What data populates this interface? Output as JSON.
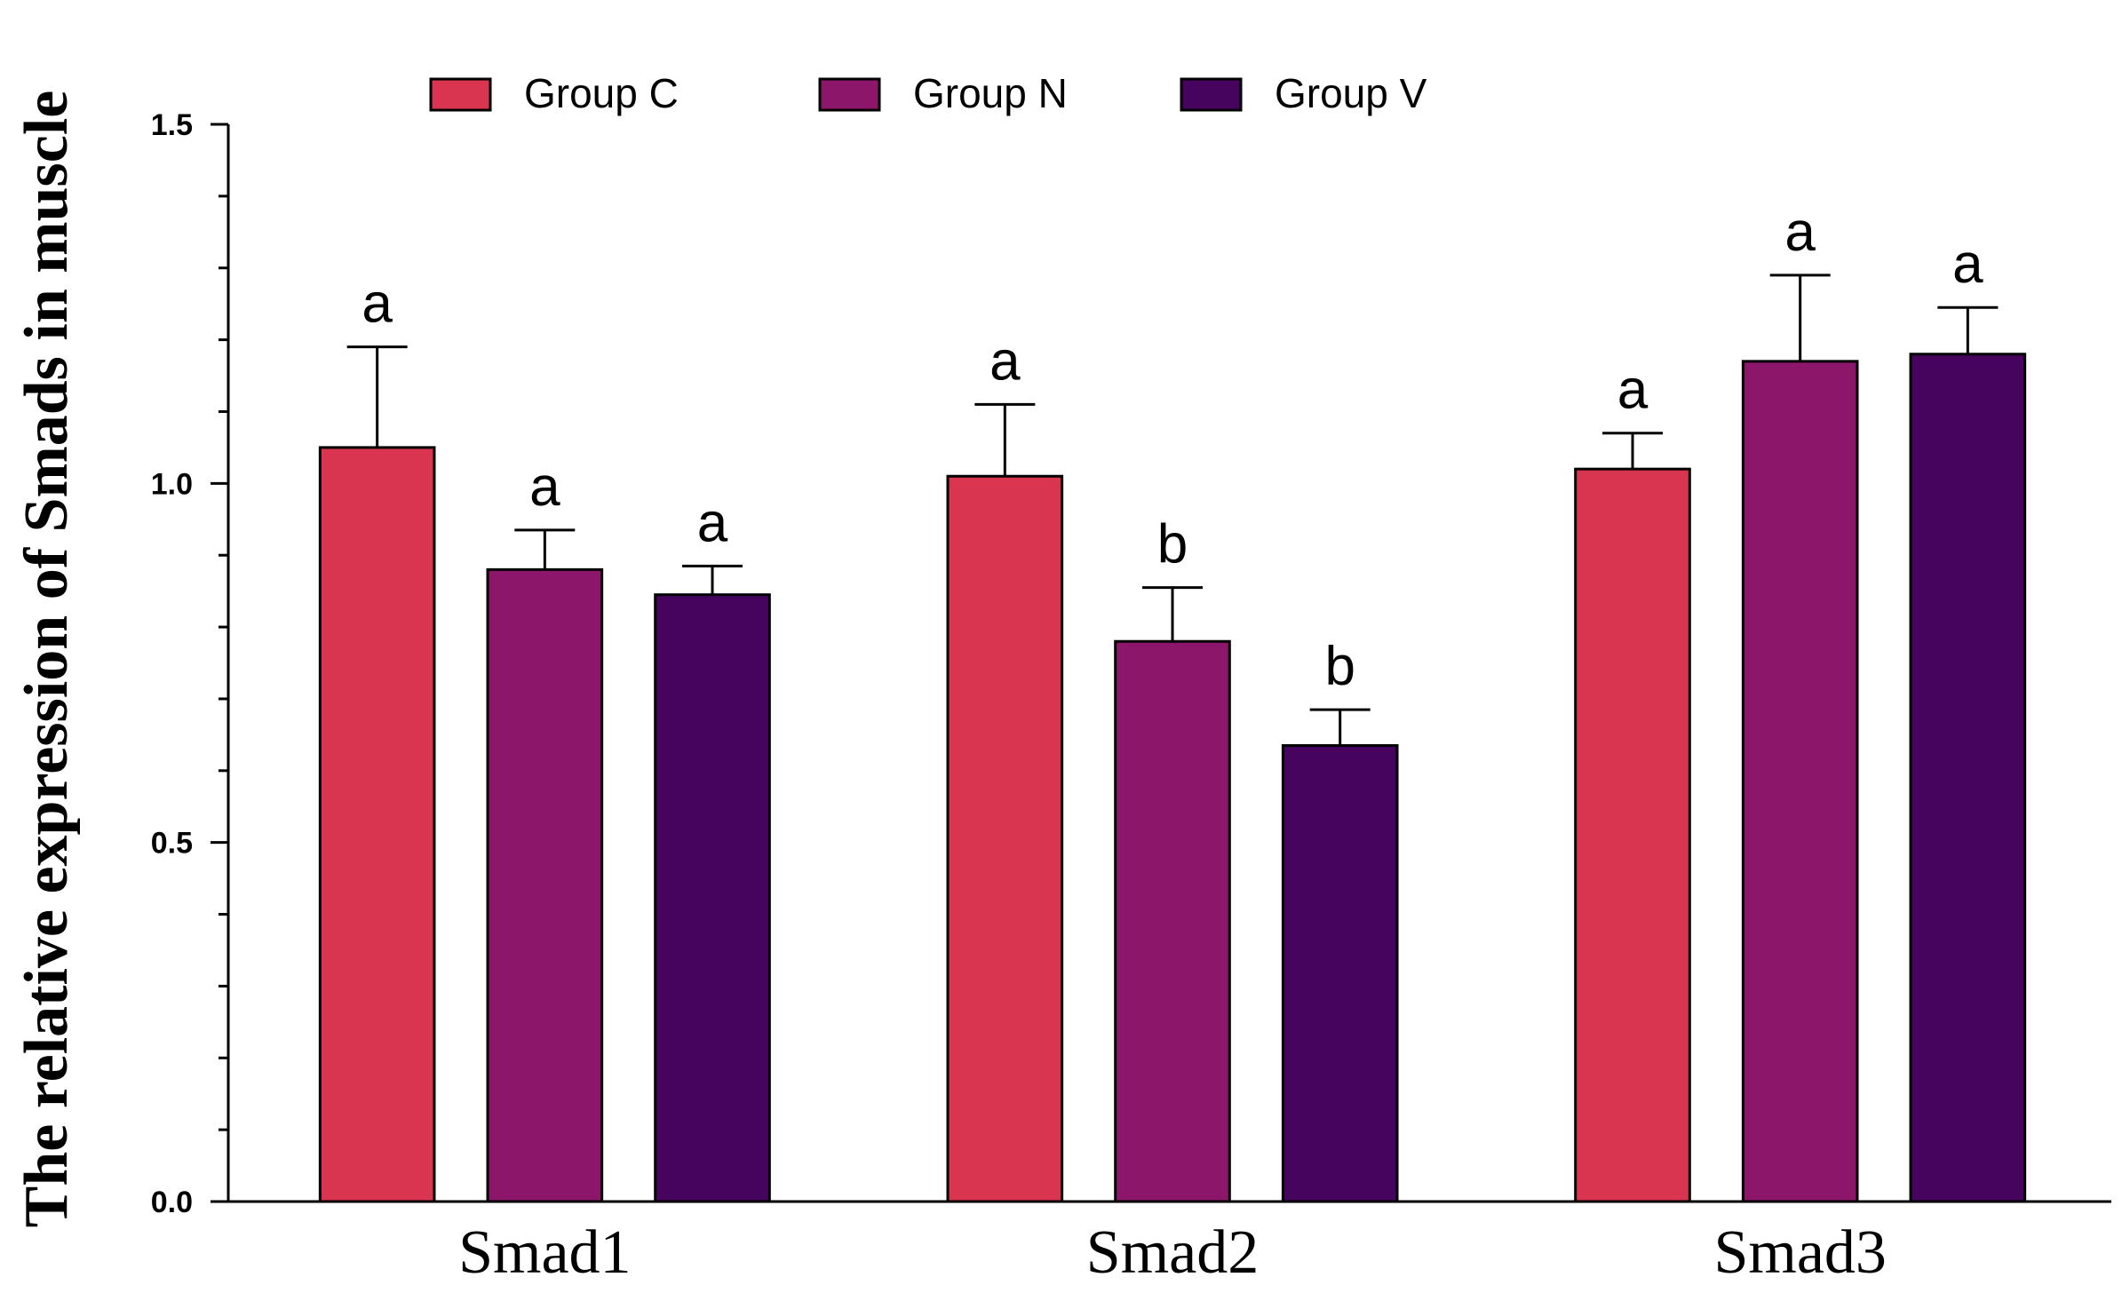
{
  "chart_data": {
    "type": "bar",
    "title": "",
    "xlabel": "",
    "ylabel": "The relative expression of Smads in muscle",
    "ylim": [
      0,
      1.5
    ],
    "yticks": [
      0.0,
      0.5,
      1.0,
      1.5
    ],
    "ytick_labels": [
      "0.0",
      "0.5",
      "1.0",
      "1.5"
    ],
    "minor_tick_step": 0.1,
    "grid": false,
    "legend_position": "top",
    "categories": [
      "Smad1",
      "Smad2",
      "Smad3"
    ],
    "series": [
      {
        "name": "Group C",
        "color": "#D93550",
        "values": [
          1.05,
          1.01,
          1.02
        ],
        "errors": [
          0.14,
          0.1,
          0.05
        ],
        "labels": [
          "a",
          "a",
          "a"
        ]
      },
      {
        "name": "Group N",
        "color": "#8B166A",
        "values": [
          0.88,
          0.78,
          1.17
        ],
        "errors": [
          0.055,
          0.075,
          0.12
        ],
        "labels": [
          "a",
          "b",
          "a"
        ]
      },
      {
        "name": "Group V",
        "color": "#46045E",
        "values": [
          0.845,
          0.635,
          1.18
        ],
        "errors": [
          0.04,
          0.05,
          0.065
        ],
        "labels": [
          "a",
          "b",
          "a"
        ]
      }
    ]
  }
}
